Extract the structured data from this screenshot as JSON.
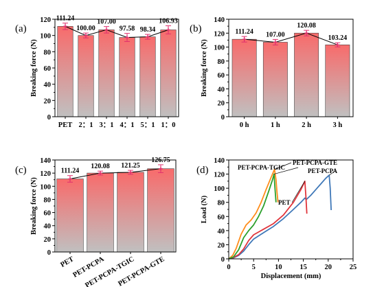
{
  "chart_data": [
    {
      "type": "bar",
      "panel": "(a)",
      "categories": [
        "PET",
        "2：1",
        "3：1",
        "4：1",
        "5：1",
        "1：0"
      ],
      "values": [
        111.24,
        100.0,
        107.0,
        97.58,
        98.34,
        106.93
      ],
      "errors": [
        4,
        3,
        4,
        5,
        3,
        5
      ],
      "value_labels": [
        "111.24",
        "100.00",
        "107.00",
        "97.58",
        "98.34",
        "106.93"
      ],
      "xlabel": "",
      "ylabel": "Breaking force (N)",
      "ylim": [
        0,
        120
      ],
      "yticks": [
        "0",
        "20",
        "40",
        "60",
        "80",
        "100",
        "120"
      ],
      "connecting_line": true,
      "bar_gradient": [
        "#f86b6b",
        "#c0c0c0"
      ]
    },
    {
      "type": "bar",
      "panel": "(b)",
      "categories": [
        "0 h",
        "1 h",
        "2 h",
        "3 h"
      ],
      "values": [
        111.24,
        107.0,
        120.08,
        103.24
      ],
      "errors": [
        4,
        4,
        4,
        3
      ],
      "value_labels": [
        "111.24",
        "107.00",
        "120.08",
        "103.24"
      ],
      "xlabel": "",
      "ylabel": "Breaking force (N)",
      "ylim": [
        0,
        140
      ],
      "yticks": [
        "0",
        "20",
        "40",
        "60",
        "80",
        "100",
        "120",
        "140"
      ],
      "connecting_line": true,
      "bar_gradient": [
        "#f86b6b",
        "#c0c0c0"
      ]
    },
    {
      "type": "bar",
      "panel": "(c)",
      "categories": [
        "PET",
        "PET-PCPA",
        "PET-PCPA-TGIC",
        "PET-PCPA-GTE"
      ],
      "values": [
        111.24,
        120.08,
        121.25,
        126.75
      ],
      "errors": [
        5,
        3,
        3,
        6
      ],
      "value_labels": [
        "111.24",
        "120.08",
        "121.25",
        "126.75"
      ],
      "xlabel": "",
      "ylabel": "Breaking force (N)",
      "ylim": [
        0,
        140
      ],
      "yticks": [
        "0",
        "20",
        "40",
        "60",
        "80",
        "100",
        "120",
        "140"
      ],
      "connecting_line": true,
      "bar_gradient": [
        "#f86b6b",
        "#c0c0c0"
      ]
    },
    {
      "type": "line",
      "panel": "(d)",
      "xlabel": "Displacement (mm)",
      "ylabel": "Load (N)",
      "xlim": [
        0,
        25
      ],
      "ylim": [
        0,
        140
      ],
      "xticks": [
        "0",
        "5",
        "10",
        "15",
        "20",
        "25"
      ],
      "yticks": [
        "0",
        "20",
        "40",
        "60",
        "80",
        "100",
        "120",
        "140"
      ],
      "series": [
        {
          "name": "PET-PCPA-TGIC",
          "color": "#2ca02c",
          "points": [
            [
              0,
              0
            ],
            [
              1,
              3
            ],
            [
              2,
              13
            ],
            [
              3,
              30
            ],
            [
              4,
              40
            ],
            [
              5,
              48
            ],
            [
              6,
              60
            ],
            [
              7,
              75
            ],
            [
              8,
              95
            ],
            [
              8.8,
              112
            ],
            [
              9.1,
              120
            ],
            [
              9.3,
              100
            ],
            [
              9.5,
              80
            ]
          ]
        },
        {
          "name": "PET-PCPA-GTE",
          "color": "#ff8c1a",
          "points": [
            [
              0,
              0
            ],
            [
              0.8,
              5
            ],
            [
              1.5,
              15
            ],
            [
              2.5,
              35
            ],
            [
              3.5,
              48
            ],
            [
              4.5,
              55
            ],
            [
              5.5,
              65
            ],
            [
              6.5,
              80
            ],
            [
              7.5,
              98
            ],
            [
              8.5,
              115
            ],
            [
              9.2,
              126.75
            ],
            [
              9.5,
              112
            ],
            [
              9.7,
              95
            ],
            [
              9.9,
              80
            ]
          ]
        },
        {
          "name": "PET",
          "color": "#e0343b",
          "points": [
            [
              0,
              0
            ],
            [
              1,
              2
            ],
            [
              2,
              6
            ],
            [
              3,
              14
            ],
            [
              4,
              26
            ],
            [
              5,
              34
            ],
            [
              7,
              42
            ],
            [
              9,
              50
            ],
            [
              11,
              62
            ],
            [
              13,
              80
            ],
            [
              14.5,
              98
            ],
            [
              15.3,
              110
            ],
            [
              15.5,
              90
            ],
            [
              15.7,
              64
            ]
          ]
        },
        {
          "name": "PET-PCPA",
          "color": "#3f78b8",
          "points": [
            [
              0,
              0
            ],
            [
              1,
              1.5
            ],
            [
              2,
              5
            ],
            [
              3,
              11
            ],
            [
              4,
              20
            ],
            [
              5,
              28
            ],
            [
              7,
              37
            ],
            [
              9,
              46
            ],
            [
              11,
              57
            ],
            [
              13,
              70
            ],
            [
              14.5,
              80
            ],
            [
              15.3,
              86
            ],
            [
              15.6,
              84
            ],
            [
              16.5,
              90
            ],
            [
              17.5,
              98
            ],
            [
              18.5,
              106
            ],
            [
              19.5,
              114
            ],
            [
              20.2,
              118.5
            ],
            [
              20.4,
              100
            ],
            [
              20.6,
              69
            ]
          ]
        }
      ]
    }
  ]
}
